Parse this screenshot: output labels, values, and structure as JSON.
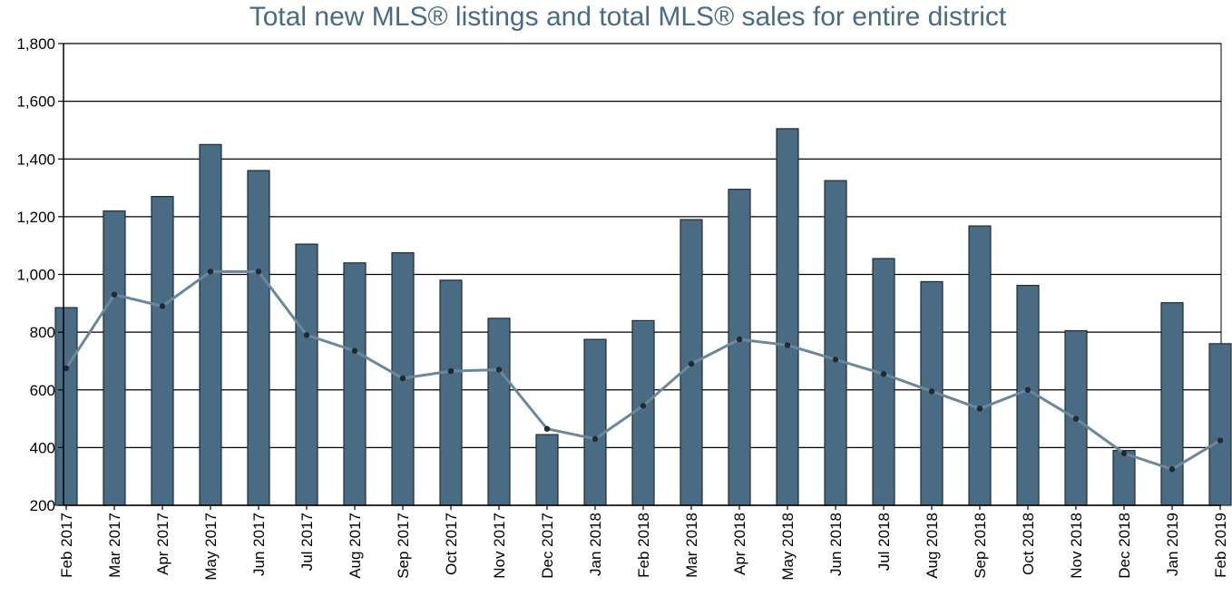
{
  "chart_data": {
    "type": "bar",
    "title": "Total new MLS® listings and total MLS® sales for entire district",
    "xlabel": "",
    "ylabel": "",
    "ylim": [
      200,
      1800
    ],
    "yticks": [
      "200",
      "400",
      "600",
      "800",
      "1,000",
      "1,200",
      "1,400",
      "1,600",
      "1,800"
    ],
    "grid": true,
    "categories": [
      "Feb 2017",
      "Mar 2017",
      "Apr 2017",
      "May 2017",
      "Jun 2017",
      "Jul 2017",
      "Aug 2017",
      "Sep 2017",
      "Oct 2017",
      "Nov 2017",
      "Dec 2017",
      "Jan 2018",
      "Feb 2018",
      "Mar 2018",
      "Apr 2018",
      "May 2018",
      "Jun 2018",
      "Jul 2018",
      "Aug 2018",
      "Sep 2018",
      "Oct 2018",
      "Nov 2018",
      "Dec 2018",
      "Jan 2019",
      "Feb 2019"
    ],
    "series": [
      {
        "type": "bar",
        "color": "#4a6b84",
        "values": [
          885,
          1220,
          1270,
          1450,
          1360,
          1105,
          1040,
          1075,
          980,
          848,
          445,
          775,
          840,
          1190,
          1295,
          1505,
          1325,
          1055,
          975,
          1168,
          962,
          805,
          390,
          902,
          760
        ]
      },
      {
        "type": "line",
        "color": "#6b879b",
        "values": [
          675,
          930,
          890,
          1010,
          1010,
          790,
          735,
          640,
          665,
          670,
          465,
          430,
          545,
          690,
          775,
          755,
          705,
          655,
          595,
          535,
          600,
          500,
          380,
          325,
          425
        ]
      }
    ]
  }
}
